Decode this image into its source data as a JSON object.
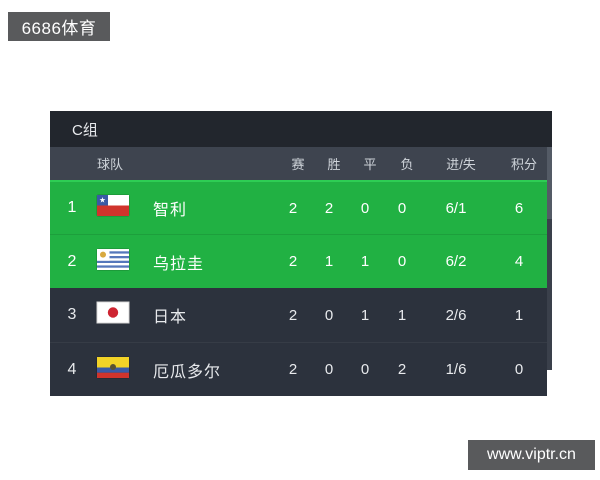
{
  "watermarks": {
    "site_badge": "6686体育",
    "url_badge": "www.viptr.cn"
  },
  "table": {
    "title": "C组",
    "columns": [
      "球队",
      "赛",
      "胜",
      "平",
      "负",
      "进/失",
      "积分"
    ],
    "rows": [
      {
        "rank": "1",
        "flag": "chile",
        "team": "智利",
        "played": "2",
        "won": "2",
        "drawn": "0",
        "lost": "0",
        "goals": "6/1",
        "points": "6",
        "highlighted": true
      },
      {
        "rank": "2",
        "flag": "uruguay",
        "team": "乌拉圭",
        "played": "2",
        "won": "1",
        "drawn": "1",
        "lost": "0",
        "goals": "6/2",
        "points": "4",
        "highlighted": true
      },
      {
        "rank": "3",
        "flag": "japan",
        "team": "日本",
        "played": "2",
        "won": "0",
        "drawn": "1",
        "lost": "1",
        "goals": "2/6",
        "points": "1",
        "highlighted": false
      },
      {
        "rank": "4",
        "flag": "ecuador",
        "team": "厄瓜多尔",
        "played": "2",
        "won": "0",
        "drawn": "0",
        "lost": "2",
        "goals": "1/6",
        "points": "0",
        "highlighted": false
      }
    ]
  },
  "colors": {
    "highlight_green": "#21b143",
    "row_dark": "#2c323d",
    "header_bg": "#3e444f",
    "title_bg": "#22262d",
    "badge_gray": "#595a5c"
  }
}
